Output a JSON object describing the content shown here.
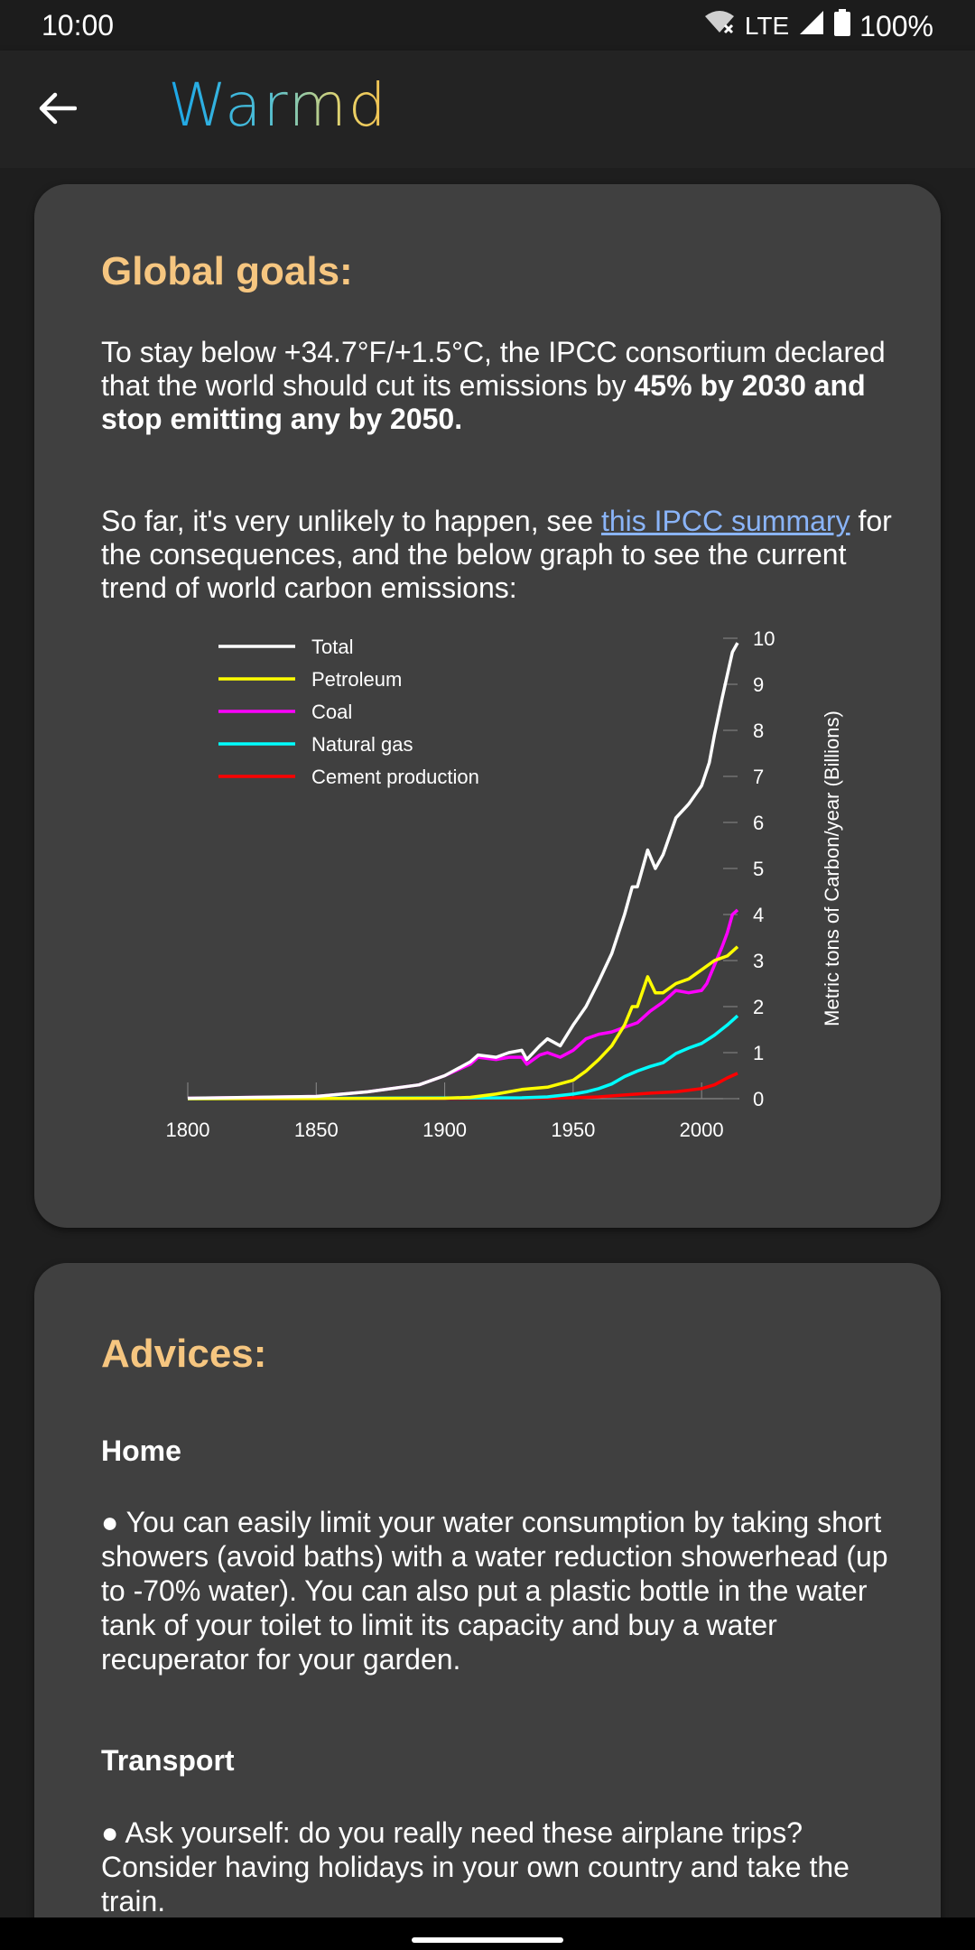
{
  "status": {
    "time": "10:00",
    "network": "LTE",
    "battery": "100%"
  },
  "appbar": {
    "title": "Warmd"
  },
  "goals": {
    "title": "Global goals:",
    "para1_pre": "To stay below +34.7°F/+1.5°C, the IPCC consortium declared that the world should cut its emissions by ",
    "para1_bold": "45% by 2030 and stop emitting any by 2050.",
    "para2_pre": "So far, it's very unlikely to happen, see ",
    "para2_link": "this IPCC summary",
    "para2_post": " for the consequences, and the below graph to see the current trend of world carbon emissions:"
  },
  "chart_data": {
    "type": "line",
    "xlabel": "",
    "ylabel": "Metric tons of Carbon/year (Billions)",
    "xlim": [
      1800,
      2014
    ],
    "ylim": [
      0,
      10
    ],
    "x_ticks": [
      "1800",
      "1850",
      "1900",
      "1950",
      "2000"
    ],
    "y_ticks": [
      "0",
      "1",
      "2",
      "3",
      "4",
      "5",
      "6",
      "7",
      "8",
      "9",
      "10"
    ],
    "legend_position": "top-left",
    "series": [
      {
        "name": "Total",
        "color": "#ffffff",
        "x": [
          1800,
          1850,
          1870,
          1890,
          1900,
          1910,
          1913,
          1920,
          1925,
          1930,
          1932,
          1937,
          1940,
          1945,
          1950,
          1955,
          1960,
          1965,
          1970,
          1973,
          1975,
          1979,
          1982,
          1985,
          1990,
          1995,
          2000,
          2003,
          2005,
          2008,
          2010,
          2012,
          2014
        ],
        "y": [
          0.01,
          0.05,
          0.15,
          0.3,
          0.5,
          0.8,
          0.95,
          0.9,
          1.0,
          1.05,
          0.85,
          1.15,
          1.3,
          1.15,
          1.6,
          2.0,
          2.55,
          3.15,
          4.0,
          4.6,
          4.6,
          5.4,
          5.0,
          5.3,
          6.1,
          6.4,
          6.8,
          7.3,
          7.9,
          8.7,
          9.2,
          9.7,
          9.9
        ]
      },
      {
        "name": "Petroleum",
        "color": "#ffff00",
        "x": [
          1800,
          1900,
          1910,
          1920,
          1930,
          1940,
          1950,
          1955,
          1960,
          1965,
          1970,
          1973,
          1975,
          1979,
          1982,
          1985,
          1990,
          1995,
          2000,
          2005,
          2010,
          2014
        ],
        "y": [
          0,
          0.01,
          0.03,
          0.1,
          0.2,
          0.25,
          0.4,
          0.6,
          0.85,
          1.15,
          1.6,
          2.0,
          2.0,
          2.65,
          2.3,
          2.3,
          2.5,
          2.6,
          2.8,
          3.0,
          3.1,
          3.3
        ]
      },
      {
        "name": "Coal",
        "color": "#ff00ff",
        "x": [
          1800,
          1850,
          1870,
          1890,
          1900,
          1910,
          1913,
          1920,
          1925,
          1930,
          1932,
          1937,
          1940,
          1945,
          1950,
          1955,
          1960,
          1965,
          1970,
          1975,
          1980,
          1985,
          1990,
          1995,
          2000,
          2002,
          2005,
          2008,
          2010,
          2012,
          2014
        ],
        "y": [
          0.01,
          0.05,
          0.15,
          0.3,
          0.5,
          0.75,
          0.9,
          0.85,
          0.9,
          0.9,
          0.75,
          0.95,
          1.0,
          0.9,
          1.05,
          1.3,
          1.4,
          1.45,
          1.55,
          1.65,
          1.9,
          2.1,
          2.35,
          2.3,
          2.35,
          2.5,
          2.9,
          3.3,
          3.6,
          4.0,
          4.1
        ]
      },
      {
        "name": "Natural gas",
        "color": "#00ffff",
        "x": [
          1800,
          1930,
          1940,
          1950,
          1955,
          1960,
          1965,
          1970,
          1975,
          1980,
          1985,
          1990,
          1995,
          2000,
          2005,
          2010,
          2014
        ],
        "y": [
          0,
          0.02,
          0.04,
          0.1,
          0.15,
          0.22,
          0.32,
          0.48,
          0.6,
          0.7,
          0.78,
          0.98,
          1.1,
          1.2,
          1.38,
          1.6,
          1.8
        ]
      },
      {
        "name": "Cement production",
        "color": "#ff0000",
        "x": [
          1800,
          1930,
          1950,
          1960,
          1970,
          1980,
          1990,
          2000,
          2005,
          2010,
          2014
        ],
        "y": [
          0,
          0.01,
          0.02,
          0.04,
          0.08,
          0.12,
          0.15,
          0.22,
          0.3,
          0.45,
          0.55
        ]
      }
    ]
  },
  "advices": {
    "title": "Advices:",
    "home_title": "Home",
    "home_text": "● You can easily limit your water consumption by taking short showers (avoid baths) with a water reduction showerhead (up to -70% water). You can also put a plastic bottle in the water tank of your toilet to limit its capacity and buy a water recuperator for your garden.",
    "transport_title": "Transport",
    "transport_text": "● Ask yourself: do you really need these airplane trips? Consider having holidays in your own country and take the train."
  }
}
